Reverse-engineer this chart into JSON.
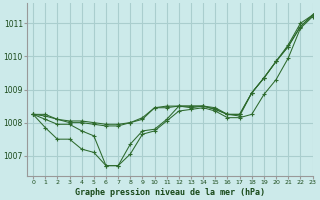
{
  "title": "Graphe pression niveau de la mer (hPa)",
  "bg_color": "#cceaea",
  "grid_color": "#aacece",
  "line_color": "#2d6a2d",
  "xlim": [
    -0.5,
    23
  ],
  "ylim": [
    1006.4,
    1011.6
  ],
  "yticks": [
    1007,
    1008,
    1009,
    1010,
    1011
  ],
  "xticks": [
    0,
    1,
    2,
    3,
    4,
    5,
    6,
    7,
    8,
    9,
    10,
    11,
    12,
    13,
    14,
    15,
    16,
    17,
    18,
    19,
    20,
    21,
    22,
    23
  ],
  "series": [
    [
      1008.25,
      1008.25,
      1008.1,
      1008.05,
      1008.05,
      1008.0,
      1007.95,
      1007.95,
      1008.0,
      1008.1,
      1008.45,
      1008.45,
      1008.5,
      1008.45,
      1008.5,
      1008.4,
      1008.25,
      1008.2,
      1008.9,
      1009.35,
      1009.85,
      1010.35,
      1011.0,
      1011.25
    ],
    [
      1008.25,
      1008.2,
      1008.1,
      1008.0,
      1008.0,
      1007.95,
      1007.9,
      1007.9,
      1008.0,
      1008.15,
      1008.45,
      1008.5,
      1008.5,
      1008.5,
      1008.5,
      1008.4,
      1008.25,
      1008.25,
      1008.9,
      1009.35,
      1009.85,
      1010.3,
      1010.9,
      1011.25
    ],
    [
      1008.25,
      1008.1,
      1007.95,
      1007.95,
      1007.75,
      1007.6,
      1006.7,
      1006.7,
      1007.35,
      1007.75,
      1007.8,
      1008.1,
      1008.5,
      1008.5,
      1008.5,
      1008.45,
      1008.25,
      1008.25,
      1008.9,
      1009.35,
      1009.85,
      1010.3,
      1010.9,
      1011.25
    ],
    [
      1008.25,
      1007.85,
      1007.5,
      1007.5,
      1007.2,
      1007.1,
      1006.7,
      1006.7,
      1007.05,
      1007.65,
      1007.75,
      1008.05,
      1008.35,
      1008.4,
      1008.45,
      1008.35,
      1008.15,
      1008.15,
      1008.25,
      1008.85,
      1009.3,
      1009.95,
      1010.85,
      1011.2
    ]
  ]
}
